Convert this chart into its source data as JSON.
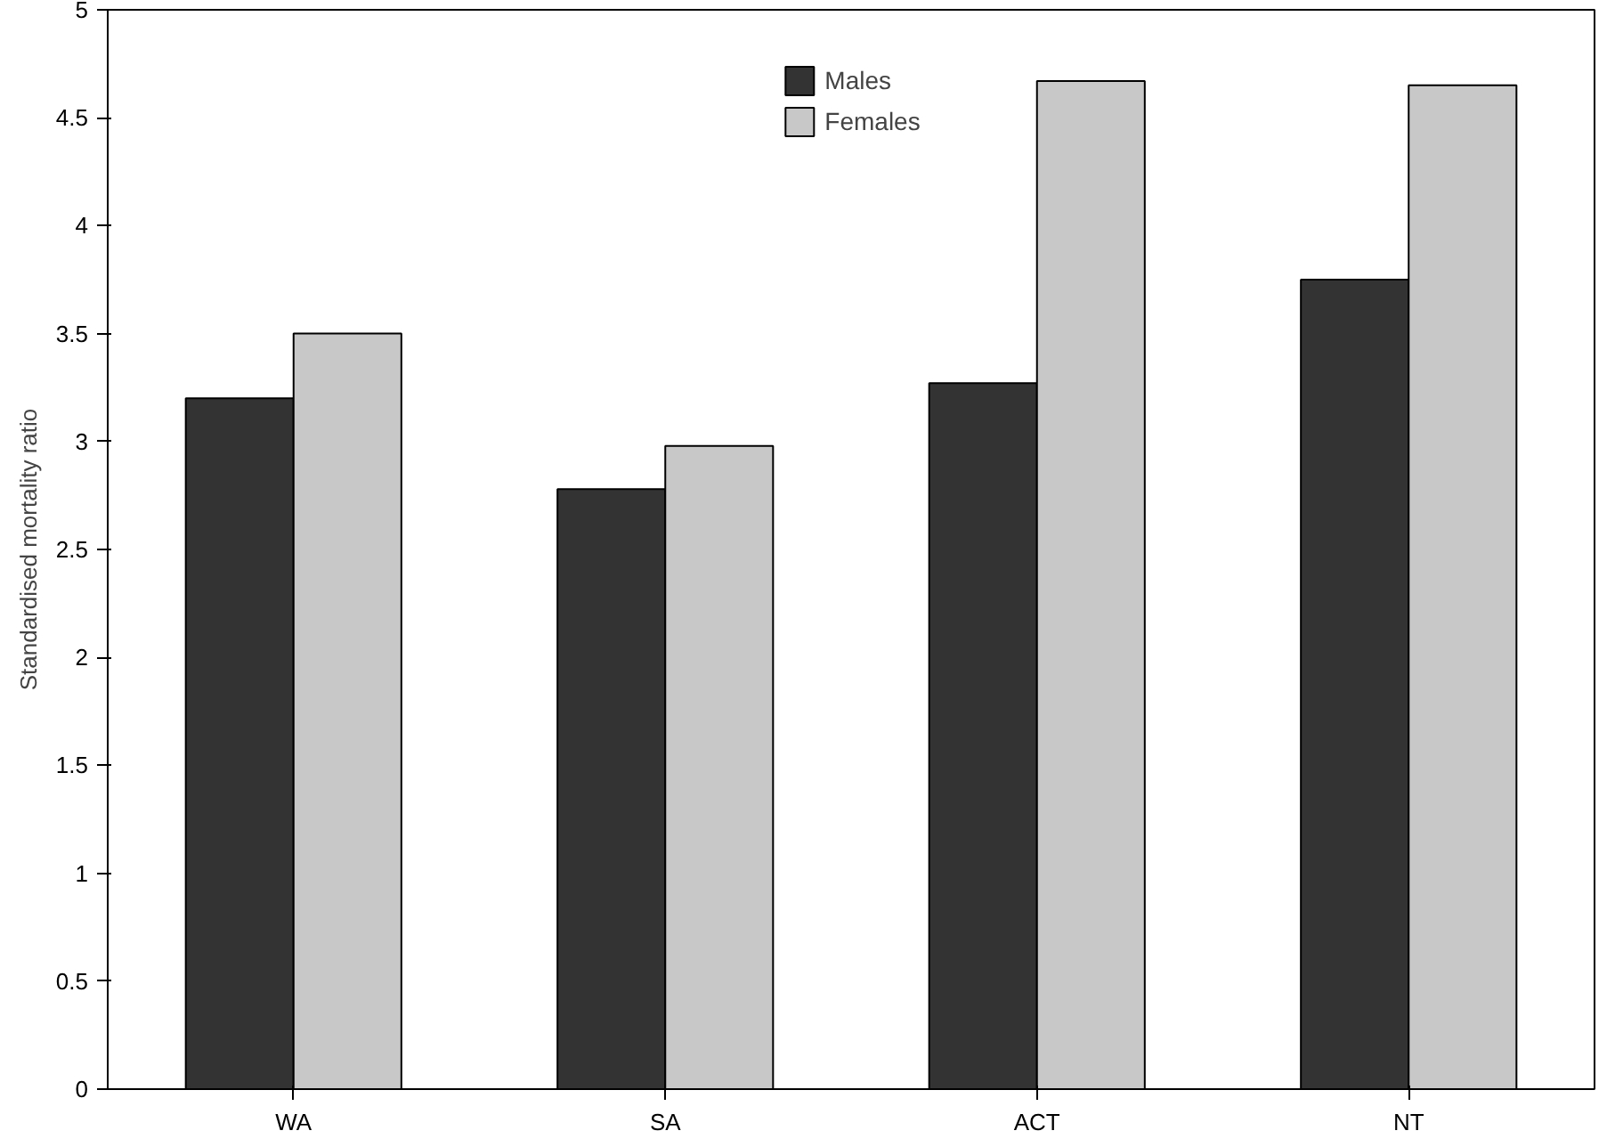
{
  "chart_data": {
    "type": "bar",
    "ylabel": "Standardised mortality ratio",
    "categories": [
      "WA",
      "SA",
      "ACT",
      "NT"
    ],
    "series": [
      {
        "name": "Males",
        "color": "#333333",
        "values": [
          3.2,
          2.78,
          3.27,
          3.75
        ]
      },
      {
        "name": "Females",
        "color": "#c8c8c8",
        "values": [
          3.5,
          2.98,
          4.67,
          4.65
        ]
      }
    ],
    "ylim": [
      0,
      5
    ],
    "yticks": [
      0,
      0.5,
      1,
      1.5,
      2,
      2.5,
      3,
      3.5,
      4,
      4.5,
      5
    ],
    "grid": false,
    "legend": "top"
  }
}
